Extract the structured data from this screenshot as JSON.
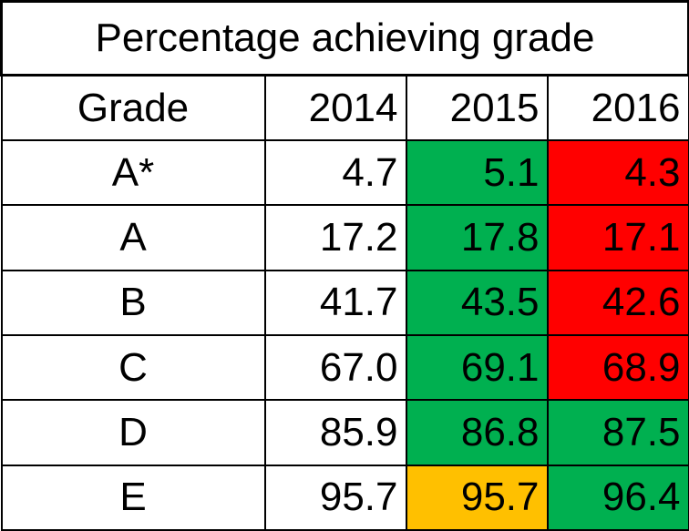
{
  "chart_data": {
    "type": "table",
    "title": "Percentage achieving grade",
    "row_header_label": "Grade",
    "columns": [
      "2014",
      "2015",
      "2016"
    ],
    "rows": [
      {
        "grade": "A*",
        "values": [
          "4.7",
          "5.1",
          "4.3"
        ],
        "colors": [
          "#FFFFFF",
          "#00B050",
          "#FF0000"
        ]
      },
      {
        "grade": "A",
        "values": [
          "17.2",
          "17.8",
          "17.1"
        ],
        "colors": [
          "#FFFFFF",
          "#00B050",
          "#FF0000"
        ]
      },
      {
        "grade": "B",
        "values": [
          "41.7",
          "43.5",
          "42.6"
        ],
        "colors": [
          "#FFFFFF",
          "#00B050",
          "#FF0000"
        ]
      },
      {
        "grade": "C",
        "values": [
          "67.0",
          "69.1",
          "68.9"
        ],
        "colors": [
          "#FFFFFF",
          "#00B050",
          "#FF0000"
        ]
      },
      {
        "grade": "D",
        "values": [
          "85.9",
          "86.8",
          "87.5"
        ],
        "colors": [
          "#FFFFFF",
          "#00B050",
          "#00B050"
        ]
      },
      {
        "grade": "E",
        "values": [
          "95.7",
          "95.7",
          "96.4"
        ],
        "colors": [
          "#FFFFFF",
          "#FFC000",
          "#00B050"
        ]
      }
    ]
  }
}
